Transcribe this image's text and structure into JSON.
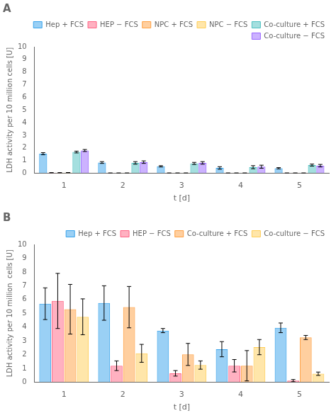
{
  "chart_data": [
    {
      "type": "bar",
      "title": "A",
      "categories": [
        "1",
        "2",
        "3",
        "4",
        "5"
      ],
      "series": [
        {
          "name": "Hep + FCS",
          "values": [
            1.55,
            0.85,
            0.55,
            0.42,
            0.4
          ],
          "errors": [
            0.08,
            0.07,
            0.05,
            0.1,
            0.05
          ]
        },
        {
          "name": "HEP − FCS",
          "values": [
            0.04,
            0.02,
            0.02,
            0.02,
            0.02
          ],
          "errors": [
            0.01,
            0.005,
            0.005,
            0.005,
            0.005
          ]
        },
        {
          "name": "NPC + FCS",
          "values": [
            0.04,
            0.02,
            0.02,
            0.02,
            0.02
          ],
          "errors": [
            0.01,
            0.005,
            0.005,
            0.005,
            0.005
          ]
        },
        {
          "name": "NPC − FCS",
          "values": [
            0.05,
            0.02,
            0.02,
            0.02,
            0.02
          ],
          "errors": [
            0.01,
            0.005,
            0.005,
            0.005,
            0.005
          ]
        },
        {
          "name": "Co-culture + FCS",
          "values": [
            1.68,
            0.82,
            0.78,
            0.48,
            0.65
          ],
          "errors": [
            0.07,
            0.1,
            0.08,
            0.12,
            0.08
          ]
        },
        {
          "name": "Co-culture − FCS",
          "values": [
            1.8,
            0.88,
            0.82,
            0.52,
            0.6
          ],
          "errors": [
            0.08,
            0.1,
            0.1,
            0.12,
            0.1
          ]
        }
      ],
      "x_label": "t [d]",
      "y_label": "LDH activity per 10 million cells [U]",
      "ylim": [
        0,
        10
      ],
      "yticks": [
        0,
        1,
        2,
        3,
        4,
        5,
        6,
        7,
        8,
        9,
        10
      ],
      "grid": false,
      "legend": "upper right"
    },
    {
      "type": "bar",
      "title": "B",
      "categories": [
        "1",
        "2",
        "3",
        "4",
        "5"
      ],
      "series": [
        {
          "name": "Hep + FCS",
          "values": [
            5.7,
            5.75,
            3.75,
            2.4,
            3.95
          ],
          "errors": [
            1.15,
            1.25,
            0.15,
            0.55,
            0.35
          ]
        },
        {
          "name": "HEP − FCS",
          "values": [
            5.9,
            1.2,
            0.65,
            1.2,
            0.12
          ],
          "errors": [
            2.0,
            0.35,
            0.2,
            0.45,
            0.08
          ]
        },
        {
          "name": "Co-culture + FCS",
          "values": [
            5.3,
            5.45,
            2.02,
            1.2,
            3.25
          ],
          "errors": [
            1.8,
            1.5,
            0.8,
            1.1,
            0.15
          ]
        },
        {
          "name": "Co-culture − FCS",
          "values": [
            4.75,
            2.1,
            1.25,
            2.55,
            0.62
          ],
          "errors": [
            1.3,
            0.65,
            0.3,
            0.55,
            0.12
          ]
        }
      ],
      "x_label": "t [d]",
      "y_label": "LDH activity per 10 million  cells [U]",
      "ylim": [
        0,
        10
      ],
      "yticks": [
        0,
        1,
        2,
        3,
        4,
        5,
        6,
        7,
        8,
        9,
        10
      ],
      "grid": false,
      "legend": "upper right"
    }
  ]
}
